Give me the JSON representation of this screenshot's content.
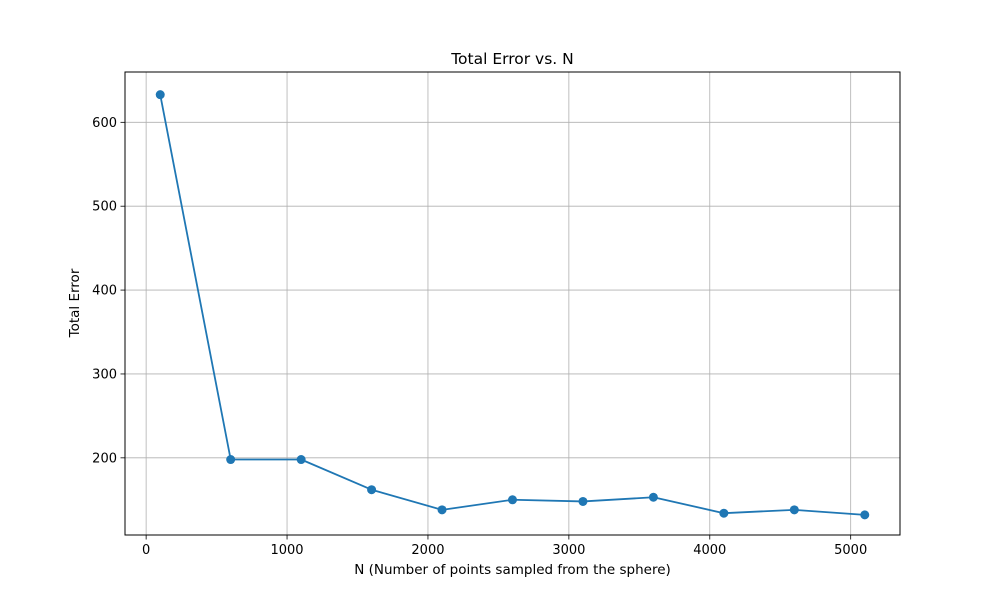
{
  "chart_data": {
    "type": "line",
    "title": "Total Error vs. N",
    "xlabel": "N (Number of points sampled from the sphere)",
    "ylabel": "Total Error",
    "xlim": [
      -150,
      5350
    ],
    "ylim": [
      108,
      660
    ],
    "xticks": [
      0,
      1000,
      2000,
      3000,
      4000,
      5000
    ],
    "yticks": [
      200,
      300,
      400,
      500,
      600
    ],
    "grid": true,
    "series": [
      {
        "color": "#1f77b4",
        "marker": "circle",
        "x": [
          100,
          600,
          1100,
          1600,
          2100,
          2600,
          3100,
          3600,
          4100,
          4600,
          5100
        ],
        "y": [
          633,
          198,
          198,
          162,
          138,
          150,
          148,
          153,
          134,
          138,
          132
        ]
      }
    ]
  }
}
